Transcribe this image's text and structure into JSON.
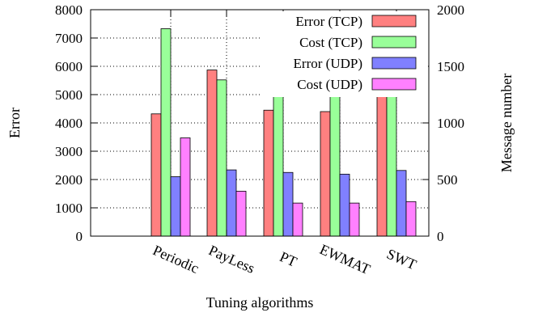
{
  "chart_data": {
    "type": "bar",
    "title": "",
    "xlabel": "Tuning algorithms",
    "ylabel": "Error",
    "y2label": "Message number",
    "categories": [
      "Periodic",
      "PayLess",
      "PT",
      "EWMAT",
      "SWT"
    ],
    "ylim": [
      0,
      8000
    ],
    "y2lim": [
      0,
      2000
    ],
    "yticks": [
      "0",
      "1000",
      "2000",
      "3000",
      "4000",
      "5000",
      "6000",
      "7000",
      "8000"
    ],
    "y2ticks": [
      "0",
      "500",
      "1000",
      "1500",
      "2000"
    ],
    "grid": true,
    "legend_position": "top-right",
    "series": [
      {
        "name": "Error (TCP)",
        "axis": "left",
        "color": "#ff8080",
        "values": [
          4320,
          5870,
          4450,
          4400,
          5460
        ]
      },
      {
        "name": "Cost (TCP)",
        "axis": "right",
        "color": "#99ff99",
        "values": [
          1832,
          1380,
          1463,
          1470,
          1295
        ]
      },
      {
        "name": "Error (UDP)",
        "axis": "left",
        "color": "#8080ff",
        "values": [
          2100,
          2340,
          2250,
          2190,
          2320
        ]
      },
      {
        "name": "Cost (UDP)",
        "axis": "right",
        "color": "#ff80ff",
        "values": [
          868,
          397,
          292,
          292,
          305
        ]
      }
    ]
  }
}
